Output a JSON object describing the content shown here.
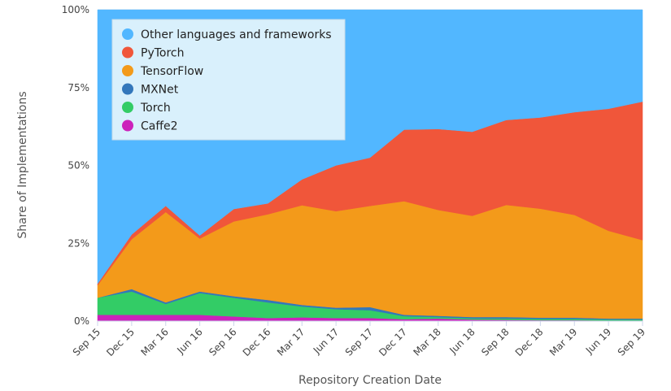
{
  "chart_data": {
    "type": "area",
    "stacked": true,
    "normalized": true,
    "title": "",
    "xlabel": "Repository Creation Date",
    "ylabel": "Share of Implementations",
    "ylim": [
      0,
      100
    ],
    "yticks": [
      "0%",
      "25%",
      "50%",
      "75%",
      "100%"
    ],
    "x_categories": [
      "Sep 15",
      "Dec 15",
      "Mar 16",
      "Jun 16",
      "Sep 16",
      "Dec 16",
      "Mar 17",
      "Jun 17",
      "Sep 17",
      "Dec 17",
      "Mar 18",
      "Jun 18",
      "Sep 18",
      "Dec 18",
      "Mar 19",
      "Jun 19",
      "Sep 19"
    ],
    "legend_position": "top-left",
    "grid": true,
    "series": [
      {
        "name": "Caffe2",
        "color": "#cc22bb",
        "values": [
          2,
          2,
          2,
          2,
          1.5,
          1,
          1.2,
          1,
          1,
          0.6,
          0.8,
          0.5,
          0.4,
          0.3,
          0.3,
          0.2,
          0.2
        ]
      },
      {
        "name": "Torch",
        "color": "#33cc66",
        "values": [
          5.5,
          7.5,
          3.5,
          7,
          6,
          5,
          3.5,
          2.8,
          2.5,
          1,
          0.5,
          0.4,
          0.4,
          0.4,
          0.4,
          0.3,
          0.3
        ]
      },
      {
        "name": "MXNet",
        "color": "#3377bb",
        "values": [
          0,
          0.8,
          0.5,
          0.5,
          0.5,
          0.8,
          0.5,
          0.5,
          1,
          0.4,
          0.4,
          0.4,
          0.5,
          0.4,
          0.4,
          0.3,
          0.3
        ]
      },
      {
        "name": "TensorFlow",
        "color": "#f39a1a",
        "values": [
          4,
          16,
          29,
          17,
          24,
          27.5,
          32,
          31,
          32.5,
          36.5,
          34,
          32.5,
          36,
          35,
          33,
          28.2,
          25.2
        ]
      },
      {
        "name": "PyTorch",
        "color": "#f0563a",
        "values": [
          0.5,
          1.5,
          2,
          1,
          4,
          3.5,
          8.3,
          14.7,
          15.5,
          23,
          26,
          27,
          27.3,
          29.3,
          33,
          39.2,
          44.5
        ]
      },
      {
        "name": "Other languages and frameworks",
        "color": "#52b7ff",
        "values": [
          88,
          72.2,
          63,
          72.5,
          64,
          62.2,
          54.5,
          50,
          47.5,
          38.5,
          38.3,
          39.2,
          35.4,
          34.6,
          32.9,
          31.8,
          29.5
        ]
      }
    ],
    "legend_order": [
      "Other languages and frameworks",
      "PyTorch",
      "TensorFlow",
      "MXNet",
      "Torch",
      "Caffe2"
    ]
  }
}
